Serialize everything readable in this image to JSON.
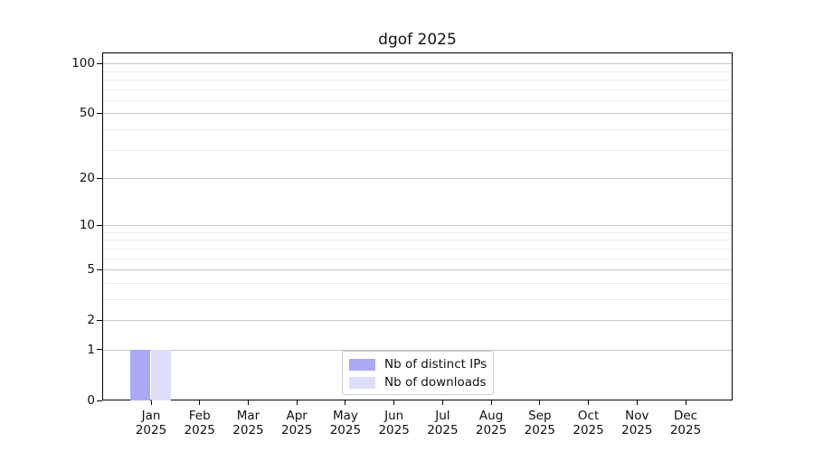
{
  "chart_data": {
    "type": "bar",
    "title": "dgof 2025",
    "categories": [
      "Jan",
      "Feb",
      "Mar",
      "Apr",
      "May",
      "Jun",
      "Jul",
      "Aug",
      "Sep",
      "Oct",
      "Nov",
      "Dec"
    ],
    "category_sublabel": "2025",
    "series": [
      {
        "name": "Nb of distinct IPs",
        "color": "#a9a9f4",
        "values": [
          1,
          0,
          0,
          0,
          0,
          0,
          0,
          0,
          0,
          0,
          0,
          0
        ]
      },
      {
        "name": "Nb of downloads",
        "color": "#dedef8",
        "values": [
          1,
          0,
          0,
          0,
          0,
          0,
          0,
          0,
          0,
          0,
          0,
          0
        ]
      }
    ],
    "y_axis": {
      "scale": "log10(1+v)",
      "major_ticks": [
        0,
        1,
        2,
        5,
        10,
        20,
        50,
        100
      ],
      "minor_gridlines": [
        3,
        4,
        6,
        7,
        8,
        9,
        30,
        40,
        60,
        70,
        80,
        90
      ],
      "range": [
        0,
        117
      ]
    },
    "grid": "horizontal",
    "legend_position": "bottom-center"
  },
  "colors": {
    "major_grid": "#c6c6c6",
    "minor_grid": "#ebebeb",
    "spine": "#000000",
    "text": "#111111"
  }
}
